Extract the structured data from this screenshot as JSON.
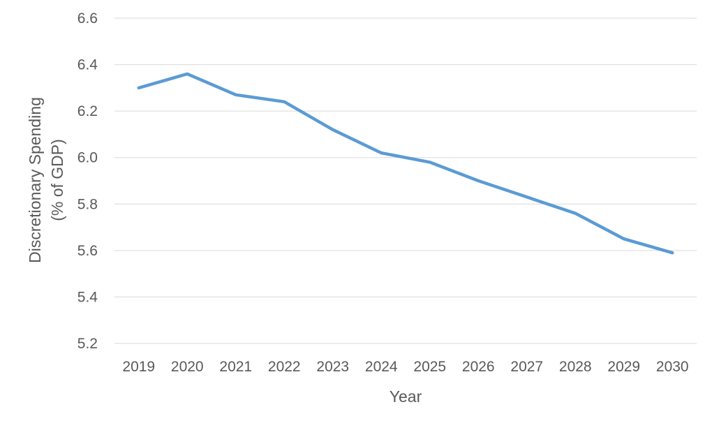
{
  "chart_data": {
    "type": "line",
    "title": "",
    "xlabel": "Year",
    "ylabel_lines": [
      "Discretionary Spending",
      "(% of GDP)"
    ],
    "categories": [
      "2019",
      "2020",
      "2021",
      "2022",
      "2023",
      "2024",
      "2025",
      "2026",
      "2027",
      "2028",
      "2029",
      "2030"
    ],
    "y_ticks": [
      "5.2",
      "5.4",
      "5.6",
      "5.8",
      "6.0",
      "6.2",
      "6.4",
      "6.6"
    ],
    "ylim": [
      5.2,
      6.6
    ],
    "grid": true,
    "legend": "none",
    "series": [
      {
        "color": "#5b9bd5",
        "values": [
          6.3,
          6.36,
          6.27,
          6.24,
          6.12,
          6.02,
          5.98,
          5.9,
          5.83,
          5.76,
          5.65,
          5.59
        ]
      }
    ]
  }
}
